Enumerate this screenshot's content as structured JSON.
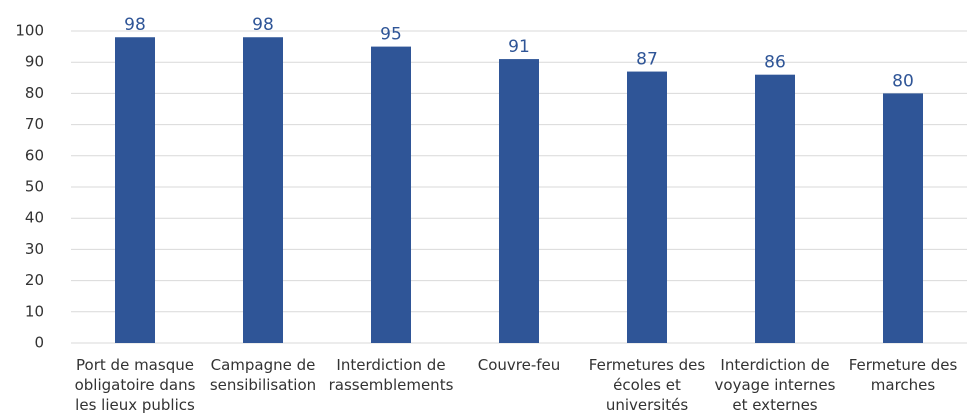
{
  "chart_data": {
    "type": "bar",
    "categories": [
      "Port de masque\nobligatoire dans\nles lieux publics",
      "Campagne de\nsensibilisation",
      "Interdiction de\nrassemblements",
      "Couvre-feu",
      "Fermetures des\nécoles et\nuniversités",
      "Interdiction de\nvoyage internes\net externes",
      "Fermeture des\nmarches"
    ],
    "values": [
      98,
      98,
      95,
      91,
      87,
      86,
      80
    ],
    "color": "#2f5597",
    "ylim": [
      0,
      100
    ],
    "yticks": [
      0,
      10,
      20,
      30,
      40,
      50,
      60,
      70,
      80,
      90,
      100
    ],
    "grid": true
  }
}
